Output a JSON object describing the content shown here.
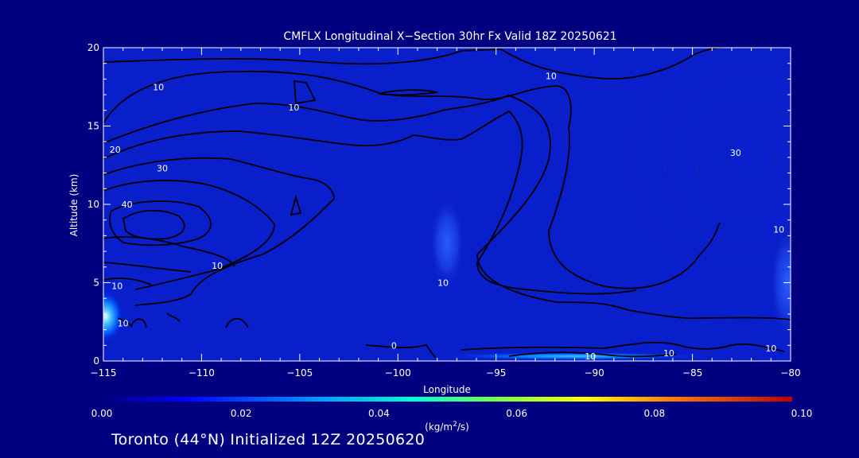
{
  "chart_data": {
    "type": "contour",
    "title": "CMFLX Longitudinal X−Section 30hr  Fx Valid 18Z 20250621",
    "xlabel": "Longitude",
    "ylabel": "Altitude (km)",
    "xlim": [
      -115,
      -80
    ],
    "ylim": [
      0,
      20
    ],
    "x_ticks": [
      -115,
      -110,
      -105,
      -100,
      -95,
      -90,
      -85,
      -80
    ],
    "x_tick_labels": [
      "−115",
      "−110",
      "−105",
      "−100",
      "−95",
      "−90",
      "−85",
      "−80"
    ],
    "y_ticks": [
      0,
      5,
      10,
      15,
      20
    ],
    "y_tick_labels": [
      "0",
      "5",
      "10",
      "15",
      "20"
    ],
    "colorbar": {
      "min": 0.0,
      "max": 0.1,
      "ticks": [
        "0.00",
        "0.02",
        "0.04",
        "0.06",
        "0.08",
        "0.10"
      ],
      "units_label": "(kg/m²/s)",
      "colormap": "rainbow"
    },
    "filled_max_regions": [
      {
        "lon": -114.8,
        "alt": 3.2,
        "value": 0.04
      },
      {
        "lon": -97.5,
        "alt": 7.5,
        "value": 0.01
      },
      {
        "lon": -90.0,
        "alt": 0.3,
        "value": 0.02
      },
      {
        "lon": -80.3,
        "alt": 5.5,
        "value": 0.01
      }
    ],
    "contour_labels": [
      {
        "text": "10",
        "lon": -112.2,
        "alt": 17.5
      },
      {
        "text": "10",
        "lon": -105.3,
        "alt": 16.2
      },
      {
        "text": "10",
        "lon": -92.2,
        "alt": 18.2
      },
      {
        "text": "20",
        "lon": -114.4,
        "alt": 13.5
      },
      {
        "text": "30",
        "lon": -112.0,
        "alt": 12.3
      },
      {
        "text": "40",
        "lon": -113.8,
        "alt": 10.0
      },
      {
        "text": "10",
        "lon": -109.2,
        "alt": 6.1
      },
      {
        "text": "10",
        "lon": -114.3,
        "alt": 4.8
      },
      {
        "text": "10",
        "lon": -114.0,
        "alt": 2.4
      },
      {
        "text": "10",
        "lon": -97.7,
        "alt": 5.0
      },
      {
        "text": "0",
        "lon": -100.2,
        "alt": 1.0
      },
      {
        "text": "10",
        "lon": -90.2,
        "alt": 0.3
      },
      {
        "text": "10",
        "lon": -86.2,
        "alt": 0.5
      },
      {
        "text": "10",
        "lon": -81.0,
        "alt": 0.8
      },
      {
        "text": "10",
        "lon": -80.6,
        "alt": 8.4
      },
      {
        "text": "30",
        "lon": -82.8,
        "alt": 13.3
      }
    ]
  },
  "footer": "Toronto (44°N) Initialized 12Z 20250620",
  "colors": {
    "background": "#000080",
    "contour": "#000000",
    "text": "#ffffff"
  }
}
